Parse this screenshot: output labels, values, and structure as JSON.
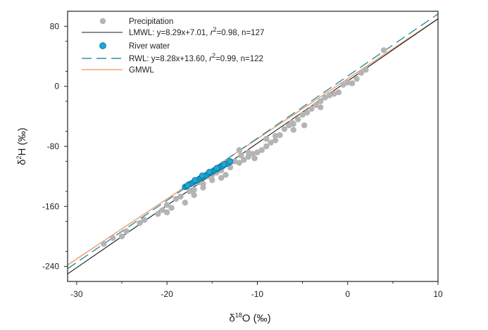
{
  "chart_data": {
    "type": "scatter",
    "xlabel": {
      "prefix": "δ",
      "sup": "18",
      "suffix": "O (‰)"
    },
    "ylabel": {
      "prefix": "δ",
      "sup": "2",
      "suffix": "H (‰)"
    },
    "xlim": [
      -31,
      10
    ],
    "ylim": [
      -260,
      100
    ],
    "xticks": [
      -30,
      -20,
      -10,
      0,
      10
    ],
    "yticks": [
      80,
      0,
      -80,
      -160,
      -240
    ],
    "legend_position": "top-left",
    "colors": {
      "precipitation": "#b4b4b4",
      "river": "#1ba9d6",
      "river_edge": "#0c6f93",
      "lmwl": "#1a1a1a",
      "rwl": "#2a8fa6",
      "gmwl": "#f0a57a"
    },
    "legend": [
      {
        "key": "precipitation",
        "marker": "gray-dot",
        "text": "Precipitation"
      },
      {
        "key": "lmwl",
        "marker": "solid-line",
        "text": "LMWL: y=8.29x+7.01, ",
        "r_label": "r",
        "r_sup": "2",
        "r_rest": "=0.98, n=127"
      },
      {
        "key": "river",
        "marker": "blue-dot",
        "text": "River water"
      },
      {
        "key": "rwl",
        "marker": "dashed-line",
        "text": "RWL: y=8.28x+13.60, ",
        "r_label": "r",
        "r_sup": "2",
        "r_rest": "=0.99, n=122"
      },
      {
        "key": "gmwl",
        "marker": "orange-line",
        "text": "GMWL"
      }
    ],
    "lines": [
      {
        "name": "LMWL",
        "slope": 8.29,
        "intercept": 7.01,
        "style": "solid"
      },
      {
        "name": "RWL",
        "slope": 8.28,
        "intercept": 13.6,
        "style": "dashed"
      },
      {
        "name": "GMWL",
        "slope": 8.0,
        "intercept": 10.0,
        "style": "solid"
      }
    ],
    "series": [
      {
        "name": "Precipitation",
        "points": [
          [
            -27,
            -210
          ],
          [
            -26,
            -202
          ],
          [
            -24.5,
            -193
          ],
          [
            -23,
            -182
          ],
          [
            -22.5,
            -178
          ],
          [
            -21,
            -170
          ],
          [
            -20.5,
            -165
          ],
          [
            -20,
            -158
          ],
          [
            -19.5,
            -162
          ],
          [
            -19,
            -150
          ],
          [
            -18.5,
            -147
          ],
          [
            -18,
            -155
          ],
          [
            -17.5,
            -140
          ],
          [
            -17,
            -138
          ],
          [
            -16.5,
            -128
          ],
          [
            -16,
            -130
          ],
          [
            -15.5,
            -120
          ],
          [
            -15,
            -125
          ],
          [
            -14.5,
            -115
          ],
          [
            -14,
            -112
          ],
          [
            -13.5,
            -118
          ],
          [
            -13,
            -108
          ],
          [
            -12.5,
            -100
          ],
          [
            -12,
            -102
          ],
          [
            -11.5,
            -98
          ],
          [
            -11,
            -94
          ],
          [
            -10.5,
            -90
          ],
          [
            -10.3,
            -96
          ],
          [
            -10,
            -88
          ],
          [
            -9.5,
            -85
          ],
          [
            -9,
            -80
          ],
          [
            -8.5,
            -75
          ],
          [
            -8,
            -66
          ],
          [
            -8,
            -72
          ],
          [
            -7.5,
            -65
          ],
          [
            -7,
            -57
          ],
          [
            -6.5,
            -52
          ],
          [
            -6.2,
            -48
          ],
          [
            -6,
            -50
          ],
          [
            -5.5,
            -44
          ],
          [
            -5,
            -38
          ],
          [
            -4.8,
            -52
          ],
          [
            -4.5,
            -35
          ],
          [
            -4,
            -30
          ],
          [
            -3.5,
            -25
          ],
          [
            -3,
            -20
          ],
          [
            -2.5,
            -15
          ],
          [
            -2,
            -12
          ],
          [
            -1.5,
            -10
          ],
          [
            -1,
            -8
          ],
          [
            -0.5,
            2
          ],
          [
            0,
            5
          ],
          [
            0.5,
            4
          ],
          [
            1,
            10
          ],
          [
            1.5,
            18
          ],
          [
            2,
            22
          ],
          [
            4,
            48
          ],
          [
            -12,
            -85
          ],
          [
            -11,
            -88
          ],
          [
            -9,
            -70
          ],
          [
            -6,
            -58
          ],
          [
            -3,
            -28
          ],
          [
            -15,
            -118
          ],
          [
            -17,
            -145
          ],
          [
            -20,
            -168
          ],
          [
            -25,
            -200
          ],
          [
            -16,
            -135
          ],
          [
            -14,
            -122
          ],
          [
            -13,
            -102
          ],
          [
            -11.8,
            -92
          ]
        ]
      },
      {
        "name": "River water",
        "points": [
          [
            -18,
            -134
          ],
          [
            -17.8,
            -133
          ],
          [
            -17.6,
            -131
          ],
          [
            -17.4,
            -130
          ],
          [
            -17.2,
            -129
          ],
          [
            -17,
            -127
          ],
          [
            -16.8,
            -126
          ],
          [
            -16.6,
            -125
          ],
          [
            -16.4,
            -123
          ],
          [
            -16.2,
            -122
          ],
          [
            -16,
            -121
          ],
          [
            -15.8,
            -119
          ],
          [
            -15.6,
            -118
          ],
          [
            -15.4,
            -116
          ],
          [
            -15.2,
            -115
          ],
          [
            -15,
            -114
          ],
          [
            -14.8,
            -112
          ],
          [
            -14.6,
            -111
          ],
          [
            -14.4,
            -110
          ],
          [
            -14.2,
            -108
          ],
          [
            -14,
            -107
          ],
          [
            -13.8,
            -106
          ],
          [
            -13.6,
            -104
          ],
          [
            -13.4,
            -103
          ],
          [
            -13.2,
            -102
          ],
          [
            -13,
            -100
          ],
          [
            -17.7,
            -132
          ],
          [
            -16.9,
            -125
          ],
          [
            -16.1,
            -119
          ],
          [
            -15.3,
            -114
          ],
          [
            -14.5,
            -109
          ],
          [
            -13.7,
            -104
          ]
        ]
      }
    ]
  }
}
